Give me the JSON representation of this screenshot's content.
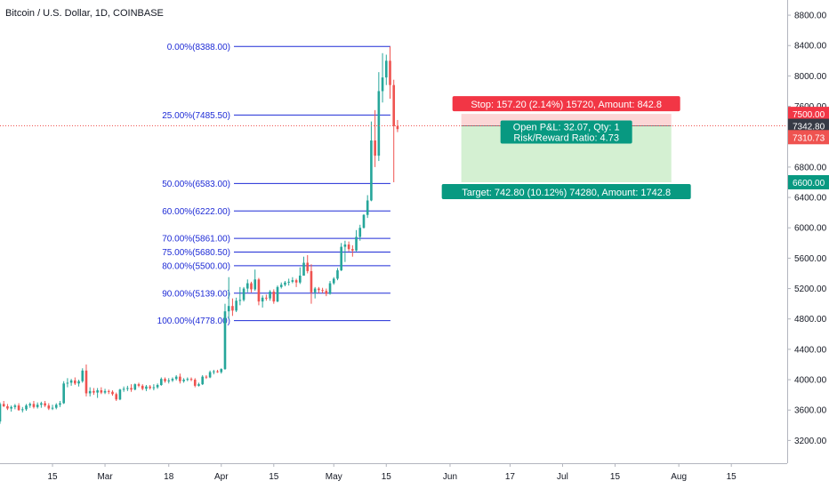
{
  "header": {
    "title": "Bitcoin / U.S. Dollar, 1D, COINBASE"
  },
  "colors": {
    "up": "#26a69a",
    "down": "#ef5350",
    "fib": "#1e2bd6",
    "stop_fill": "#fcd6d6",
    "target_fill": "#d4f0d2",
    "stop_label": "#f23645",
    "target_label": "#089981",
    "current_price": "#ef5350",
    "dark_tag": "#363a45"
  },
  "chart_data": {
    "type": "candlestick",
    "ylim": [
      2900,
      9000
    ],
    "y_ticks": [
      3200,
      3600,
      4000,
      4400,
      4800,
      5200,
      5600,
      6000,
      6400,
      6800,
      7200,
      7600,
      8000,
      8400,
      8800
    ],
    "y_tick_labels": [
      "3200.00",
      "3600.00",
      "4000.00",
      "4400.00",
      "4800.00",
      "5200.00",
      "5600.00",
      "6000.00",
      "6400.00",
      "6800.00",
      "7200.00",
      "7600.00",
      "8000.00",
      "8400.00",
      "8800.00"
    ],
    "x_start_date": "2019-02-01",
    "x_end_date": "2019-08-28",
    "x_ticks": [
      {
        "date": "2019-02-15",
        "label": "15"
      },
      {
        "date": "2019-03-01",
        "label": "Mar"
      },
      {
        "date": "2019-03-18",
        "label": "18"
      },
      {
        "date": "2019-04-01",
        "label": "Apr"
      },
      {
        "date": "2019-04-15",
        "label": "15"
      },
      {
        "date": "2019-05-01",
        "label": "May"
      },
      {
        "date": "2019-05-15",
        "label": "15"
      },
      {
        "date": "2019-06-01",
        "label": "Jun"
      },
      {
        "date": "2019-06-17",
        "label": "17"
      },
      {
        "date": "2019-07-01",
        "label": "Jul"
      },
      {
        "date": "2019-07-15",
        "label": "15"
      },
      {
        "date": "2019-08-01",
        "label": "Aug"
      },
      {
        "date": "2019-08-15",
        "label": "15"
      }
    ],
    "candles": [
      {
        "d": "2019-02-01",
        "o": 3450,
        "h": 3700,
        "l": 3420,
        "c": 3680
      },
      {
        "d": "2019-02-02",
        "o": 3680,
        "h": 3720,
        "l": 3640,
        "c": 3650
      },
      {
        "d": "2019-02-03",
        "o": 3650,
        "h": 3680,
        "l": 3600,
        "c": 3620
      },
      {
        "d": "2019-02-04",
        "o": 3620,
        "h": 3660,
        "l": 3580,
        "c": 3640
      },
      {
        "d": "2019-02-05",
        "o": 3640,
        "h": 3680,
        "l": 3610,
        "c": 3660
      },
      {
        "d": "2019-02-06",
        "o": 3660,
        "h": 3690,
        "l": 3590,
        "c": 3600
      },
      {
        "d": "2019-02-07",
        "o": 3600,
        "h": 3640,
        "l": 3570,
        "c": 3610
      },
      {
        "d": "2019-02-08",
        "o": 3610,
        "h": 3680,
        "l": 3590,
        "c": 3660
      },
      {
        "d": "2019-02-09",
        "o": 3660,
        "h": 3700,
        "l": 3630,
        "c": 3680
      },
      {
        "d": "2019-02-10",
        "o": 3680,
        "h": 3720,
        "l": 3620,
        "c": 3640
      },
      {
        "d": "2019-02-11",
        "o": 3640,
        "h": 3700,
        "l": 3620,
        "c": 3670
      },
      {
        "d": "2019-02-12",
        "o": 3670,
        "h": 3710,
        "l": 3630,
        "c": 3690
      },
      {
        "d": "2019-02-13",
        "o": 3690,
        "h": 3720,
        "l": 3640,
        "c": 3660
      },
      {
        "d": "2019-02-14",
        "o": 3660,
        "h": 3690,
        "l": 3600,
        "c": 3620
      },
      {
        "d": "2019-02-15",
        "o": 3620,
        "h": 3670,
        "l": 3600,
        "c": 3630
      },
      {
        "d": "2019-02-16",
        "o": 3630,
        "h": 3690,
        "l": 3610,
        "c": 3670
      },
      {
        "d": "2019-02-17",
        "o": 3670,
        "h": 3720,
        "l": 3640,
        "c": 3690
      },
      {
        "d": "2019-02-18",
        "o": 3690,
        "h": 3980,
        "l": 3680,
        "c": 3950
      },
      {
        "d": "2019-02-19",
        "o": 3950,
        "h": 4020,
        "l": 3900,
        "c": 3960
      },
      {
        "d": "2019-02-20",
        "o": 3960,
        "h": 4010,
        "l": 3920,
        "c": 3990
      },
      {
        "d": "2019-02-21",
        "o": 3990,
        "h": 4030,
        "l": 3930,
        "c": 3950
      },
      {
        "d": "2019-02-22",
        "o": 3950,
        "h": 4000,
        "l": 3910,
        "c": 3980
      },
      {
        "d": "2019-02-23",
        "o": 3980,
        "h": 4150,
        "l": 3960,
        "c": 4120
      },
      {
        "d": "2019-02-24",
        "o": 4120,
        "h": 4200,
        "l": 3780,
        "c": 3820
      },
      {
        "d": "2019-02-25",
        "o": 3820,
        "h": 3900,
        "l": 3780,
        "c": 3850
      },
      {
        "d": "2019-02-26",
        "o": 3850,
        "h": 3890,
        "l": 3800,
        "c": 3830
      },
      {
        "d": "2019-02-27",
        "o": 3830,
        "h": 3890,
        "l": 3760,
        "c": 3860
      },
      {
        "d": "2019-02-28",
        "o": 3860,
        "h": 3900,
        "l": 3810,
        "c": 3830
      },
      {
        "d": "2019-03-01",
        "o": 3830,
        "h": 3880,
        "l": 3810,
        "c": 3850
      },
      {
        "d": "2019-03-02",
        "o": 3850,
        "h": 3870,
        "l": 3810,
        "c": 3840
      },
      {
        "d": "2019-03-03",
        "o": 3840,
        "h": 3860,
        "l": 3790,
        "c": 3810
      },
      {
        "d": "2019-03-04",
        "o": 3810,
        "h": 3830,
        "l": 3720,
        "c": 3740
      },
      {
        "d": "2019-03-05",
        "o": 3740,
        "h": 3880,
        "l": 3730,
        "c": 3870
      },
      {
        "d": "2019-03-06",
        "o": 3870,
        "h": 3910,
        "l": 3840,
        "c": 3880
      },
      {
        "d": "2019-03-07",
        "o": 3880,
        "h": 3920,
        "l": 3850,
        "c": 3890
      },
      {
        "d": "2019-03-08",
        "o": 3890,
        "h": 3940,
        "l": 3840,
        "c": 3870
      },
      {
        "d": "2019-03-09",
        "o": 3870,
        "h": 3950,
        "l": 3860,
        "c": 3940
      },
      {
        "d": "2019-03-10",
        "o": 3940,
        "h": 3960,
        "l": 3900,
        "c": 3920
      },
      {
        "d": "2019-03-11",
        "o": 3920,
        "h": 3940,
        "l": 3860,
        "c": 3880
      },
      {
        "d": "2019-03-12",
        "o": 3880,
        "h": 3930,
        "l": 3850,
        "c": 3910
      },
      {
        "d": "2019-03-13",
        "o": 3910,
        "h": 3930,
        "l": 3870,
        "c": 3890
      },
      {
        "d": "2019-03-14",
        "o": 3890,
        "h": 3940,
        "l": 3860,
        "c": 3900
      },
      {
        "d": "2019-03-15",
        "o": 3900,
        "h": 3950,
        "l": 3880,
        "c": 3930
      },
      {
        "d": "2019-03-16",
        "o": 3930,
        "h": 4030,
        "l": 3920,
        "c": 4010
      },
      {
        "d": "2019-03-17",
        "o": 4010,
        "h": 4030,
        "l": 3960,
        "c": 3980
      },
      {
        "d": "2019-03-18",
        "o": 3980,
        "h": 4020,
        "l": 3950,
        "c": 3990
      },
      {
        "d": "2019-03-19",
        "o": 3990,
        "h": 4030,
        "l": 3970,
        "c": 4010
      },
      {
        "d": "2019-03-20",
        "o": 4010,
        "h": 4060,
        "l": 3990,
        "c": 4040
      },
      {
        "d": "2019-03-21",
        "o": 4040,
        "h": 4080,
        "l": 3950,
        "c": 3980
      },
      {
        "d": "2019-03-22",
        "o": 3980,
        "h": 4020,
        "l": 3960,
        "c": 4000
      },
      {
        "d": "2019-03-23",
        "o": 4000,
        "h": 4030,
        "l": 3980,
        "c": 4010
      },
      {
        "d": "2019-03-24",
        "o": 4010,
        "h": 4030,
        "l": 3980,
        "c": 4000
      },
      {
        "d": "2019-03-25",
        "o": 4000,
        "h": 4020,
        "l": 3900,
        "c": 3920
      },
      {
        "d": "2019-03-26",
        "o": 3920,
        "h": 3960,
        "l": 3910,
        "c": 3940
      },
      {
        "d": "2019-03-27",
        "o": 3940,
        "h": 4060,
        "l": 3930,
        "c": 4040
      },
      {
        "d": "2019-03-28",
        "o": 4040,
        "h": 4060,
        "l": 4010,
        "c": 4030
      },
      {
        "d": "2019-03-29",
        "o": 4030,
        "h": 4120,
        "l": 4020,
        "c": 4100
      },
      {
        "d": "2019-03-30",
        "o": 4100,
        "h": 4130,
        "l": 4070,
        "c": 4110
      },
      {
        "d": "2019-03-31",
        "o": 4110,
        "h": 4130,
        "l": 4090,
        "c": 4100
      },
      {
        "d": "2019-04-01",
        "o": 4100,
        "h": 4150,
        "l": 4080,
        "c": 4140
      },
      {
        "d": "2019-04-02",
        "o": 4140,
        "h": 5000,
        "l": 4130,
        "c": 4900
      },
      {
        "d": "2019-04-03",
        "o": 4900,
        "h": 5350,
        "l": 4800,
        "c": 4970
      },
      {
        "d": "2019-04-04",
        "o": 4970,
        "h": 5070,
        "l": 4840,
        "c": 4910
      },
      {
        "d": "2019-04-05",
        "o": 4910,
        "h": 5080,
        "l": 4890,
        "c": 5040
      },
      {
        "d": "2019-04-06",
        "o": 5040,
        "h": 5220,
        "l": 4980,
        "c": 5050
      },
      {
        "d": "2019-04-07",
        "o": 5050,
        "h": 5220,
        "l": 5030,
        "c": 5200
      },
      {
        "d": "2019-04-08",
        "o": 5200,
        "h": 5320,
        "l": 5150,
        "c": 5270
      },
      {
        "d": "2019-04-09",
        "o": 5270,
        "h": 5290,
        "l": 5150,
        "c": 5190
      },
      {
        "d": "2019-04-10",
        "o": 5190,
        "h": 5450,
        "l": 5170,
        "c": 5320
      },
      {
        "d": "2019-04-11",
        "o": 5320,
        "h": 5340,
        "l": 4980,
        "c": 5030
      },
      {
        "d": "2019-04-12",
        "o": 5030,
        "h": 5110,
        "l": 4950,
        "c": 5080
      },
      {
        "d": "2019-04-13",
        "o": 5080,
        "h": 5120,
        "l": 5040,
        "c": 5070
      },
      {
        "d": "2019-04-14",
        "o": 5070,
        "h": 5180,
        "l": 5040,
        "c": 5160
      },
      {
        "d": "2019-04-15",
        "o": 5160,
        "h": 5190,
        "l": 5000,
        "c": 5030
      },
      {
        "d": "2019-04-16",
        "o": 5030,
        "h": 5240,
        "l": 5020,
        "c": 5220
      },
      {
        "d": "2019-04-17",
        "o": 5220,
        "h": 5280,
        "l": 5200,
        "c": 5250
      },
      {
        "d": "2019-04-18",
        "o": 5250,
        "h": 5300,
        "l": 5230,
        "c": 5280
      },
      {
        "d": "2019-04-19",
        "o": 5280,
        "h": 5330,
        "l": 5240,
        "c": 5290
      },
      {
        "d": "2019-04-20",
        "o": 5290,
        "h": 5350,
        "l": 5270,
        "c": 5310
      },
      {
        "d": "2019-04-21",
        "o": 5310,
        "h": 5330,
        "l": 5220,
        "c": 5280
      },
      {
        "d": "2019-04-22",
        "o": 5280,
        "h": 5480,
        "l": 5260,
        "c": 5370
      },
      {
        "d": "2019-04-23",
        "o": 5370,
        "h": 5620,
        "l": 5370,
        "c": 5540
      },
      {
        "d": "2019-04-24",
        "o": 5540,
        "h": 5640,
        "l": 5400,
        "c": 5430
      },
      {
        "d": "2019-04-25",
        "o": 5430,
        "h": 5520,
        "l": 5000,
        "c": 5150
      },
      {
        "d": "2019-04-26",
        "o": 5150,
        "h": 5220,
        "l": 5070,
        "c": 5200
      },
      {
        "d": "2019-04-27",
        "o": 5200,
        "h": 5220,
        "l": 5140,
        "c": 5180
      },
      {
        "d": "2019-04-28",
        "o": 5180,
        "h": 5210,
        "l": 5140,
        "c": 5170
      },
      {
        "d": "2019-04-29",
        "o": 5170,
        "h": 5200,
        "l": 5100,
        "c": 5130
      },
      {
        "d": "2019-04-30",
        "o": 5130,
        "h": 5300,
        "l": 5120,
        "c": 5270
      },
      {
        "d": "2019-05-01",
        "o": 5270,
        "h": 5350,
        "l": 5250,
        "c": 5330
      },
      {
        "d": "2019-05-02",
        "o": 5330,
        "h": 5470,
        "l": 5310,
        "c": 5440
      },
      {
        "d": "2019-05-03",
        "o": 5440,
        "h": 5800,
        "l": 5430,
        "c": 5750
      },
      {
        "d": "2019-05-04",
        "o": 5750,
        "h": 5830,
        "l": 5550,
        "c": 5780
      },
      {
        "d": "2019-05-05",
        "o": 5780,
        "h": 5820,
        "l": 5690,
        "c": 5720
      },
      {
        "d": "2019-05-06",
        "o": 5720,
        "h": 5770,
        "l": 5620,
        "c": 5700
      },
      {
        "d": "2019-05-07",
        "o": 5700,
        "h": 5970,
        "l": 5690,
        "c": 5880
      },
      {
        "d": "2019-05-08",
        "o": 5880,
        "h": 6040,
        "l": 5830,
        "c": 6000
      },
      {
        "d": "2019-05-09",
        "o": 6000,
        "h": 6180,
        "l": 5990,
        "c": 6170
      },
      {
        "d": "2019-05-10",
        "o": 6170,
        "h": 6430,
        "l": 6130,
        "c": 6360
      },
      {
        "d": "2019-05-11",
        "o": 6360,
        "h": 7400,
        "l": 6350,
        "c": 7150
      },
      {
        "d": "2019-05-12",
        "o": 7150,
        "h": 7550,
        "l": 6800,
        "c": 6950
      },
      {
        "d": "2019-05-13",
        "o": 6950,
        "h": 8050,
        "l": 6880,
        "c": 7800
      },
      {
        "d": "2019-05-14",
        "o": 7800,
        "h": 8300,
        "l": 7650,
        "c": 7980
      },
      {
        "d": "2019-05-15",
        "o": 7980,
        "h": 8280,
        "l": 7880,
        "c": 8200
      },
      {
        "d": "2019-05-16",
        "o": 8200,
        "h": 8388,
        "l": 7700,
        "c": 7880
      },
      {
        "d": "2019-05-17",
        "o": 7880,
        "h": 7950,
        "l": 6600,
        "c": 7340
      },
      {
        "d": "2019-05-18",
        "o": 7340,
        "h": 7420,
        "l": 7260,
        "c": 7300
      }
    ],
    "fibonacci": {
      "start_date": "2019-04-02",
      "end_date": "2019-05-18",
      "levels": [
        {
          "label": "0.00%(8388.00)",
          "price": 8388.0
        },
        {
          "label": "25.00%(7485.50)",
          "price": 7485.5
        },
        {
          "label": "50.00%(6583.00)",
          "price": 6583.0
        },
        {
          "label": "60.00%(6222.00)",
          "price": 6222.0
        },
        {
          "label": "70.00%(5861.00)",
          "price": 5861.0
        },
        {
          "label": "75.00%(5680.50)",
          "price": 5680.5
        },
        {
          "label": "80.00%(5500.00)",
          "price": 5500.0
        },
        {
          "label": "90.00%(5139.00)",
          "price": 5139.0
        },
        {
          "label": "100.00%(4778.00)",
          "price": 4778.0
        }
      ]
    },
    "position": {
      "start_date": "2019-06-04",
      "end_date": "2019-07-30",
      "entry": 7342.8,
      "stop": 7500.0,
      "target": 6600.0,
      "stop_label": "Stop: 157.20 (2.14%) 15720, Amount: 842.8",
      "pnl_label": "Open P&L: 32.07, Qty: 1",
      "rr_label": "Risk/Reward Ratio: 4.73",
      "target_label": "Target: 742.80 (10.12%) 74280, Amount: 1742.8"
    },
    "current_price": 7310.73,
    "price_tags": [
      {
        "price": 7500.0,
        "label": "7500.00",
        "kind": "stop"
      },
      {
        "price": 7342.8,
        "label": "7342.80",
        "kind": "entry"
      },
      {
        "price": 7310.73,
        "label": "7310.73",
        "kind": "current"
      },
      {
        "price": 6600.0,
        "label": "6600.00",
        "kind": "target"
      }
    ]
  }
}
